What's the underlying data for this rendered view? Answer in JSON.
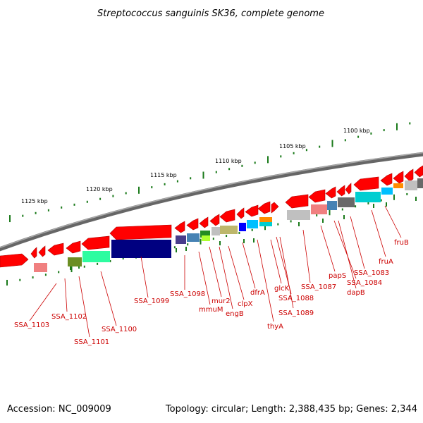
{
  "title": "Streptococcus sanguinis SK36, complete genome",
  "footer": {
    "accession": "Accession: NC_009009",
    "topology": "Topology: circular; Length: 2,388,435 bp; Genes: 2,344"
  },
  "colors": {
    "gene_arrow": "#ff0000",
    "label": "#cc0000",
    "tick": "#1a7a1a",
    "backbone": "#777777"
  },
  "kbp_ticks": [
    "1125 kbp",
    "1120 kbp",
    "1115 kbp",
    "1110 kbp",
    "1105 kbp",
    "1100 kbp"
  ],
  "gene_labels": [
    "SSA_1103",
    "SSA_1102",
    "SSA_1101",
    "SSA_1100",
    "SSA_1099",
    "SSA_1098",
    "mmuM",
    "mur2",
    "engB",
    "clpX",
    "dfrA",
    "thyA",
    "glcK",
    "SSA_1088",
    "SSA_1089",
    "SSA_1087",
    "papS",
    "SSA_1084",
    "dapB",
    "SSA_1083",
    "fruA",
    "fruB"
  ]
}
